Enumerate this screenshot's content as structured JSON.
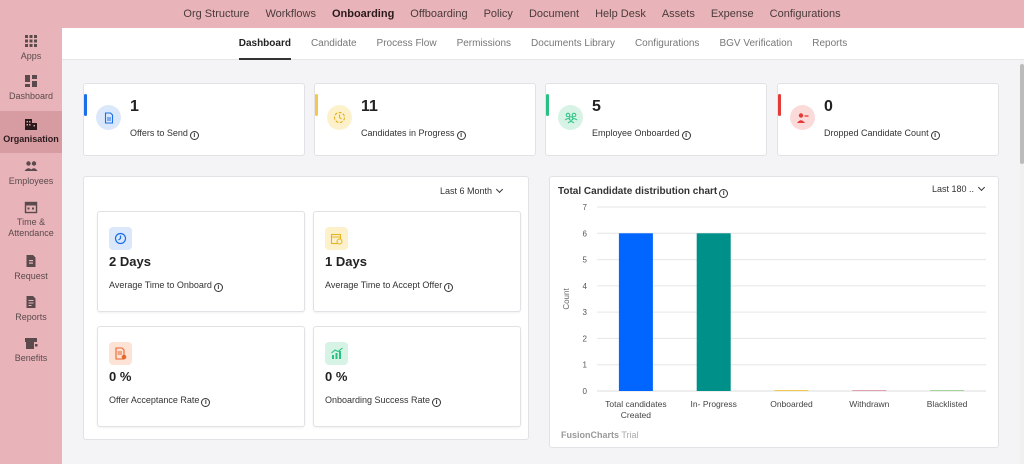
{
  "top_nav": {
    "items": [
      "Org Structure",
      "Workflows",
      "Onboarding",
      "Offboarding",
      "Policy",
      "Document",
      "Help Desk",
      "Assets",
      "Expense",
      "Configurations"
    ],
    "active": "Onboarding"
  },
  "sidebar": {
    "items": [
      {
        "label": "Apps",
        "icon": "grid-icon"
      },
      {
        "label": "Dashboard",
        "icon": "dashboard-icon"
      },
      {
        "label": "Organisation",
        "icon": "building-icon"
      },
      {
        "label": "Employees",
        "icon": "people-icon"
      },
      {
        "label": "Time & Attendance",
        "icon": "calendar-icon"
      },
      {
        "label": "Request",
        "icon": "request-icon"
      },
      {
        "label": "Reports",
        "icon": "report-icon"
      },
      {
        "label": "Benefits",
        "icon": "benefits-icon"
      }
    ],
    "active": "Organisation"
  },
  "sub_nav": {
    "tabs": [
      "Dashboard",
      "Candidate",
      "Process Flow",
      "Permissions",
      "Documents Library",
      "Configurations",
      "BGV Verification",
      "Reports"
    ],
    "active": "Dashboard"
  },
  "stats": [
    {
      "value": "1",
      "label": "Offers to Send",
      "icon": "document-icon",
      "accent": "#1a6fe8",
      "circle": "#dbe8fb"
    },
    {
      "value": "11",
      "label": "Candidates in Progress",
      "icon": "progress-icon",
      "accent": "#f2c94c",
      "circle": "#fdf1cc"
    },
    {
      "value": "5",
      "label": "Employee Onboarded",
      "icon": "group-icon",
      "accent": "#27c281",
      "circle": "#d6f3e6"
    },
    {
      "value": "0",
      "label": "Dropped Candidate Count",
      "icon": "user-remove-icon",
      "accent": "#e53935",
      "circle": "#fbdada"
    }
  ],
  "metrics_panel": {
    "range": "Last 6 Month",
    "metrics": [
      {
        "value": "2 Days",
        "label": "Average Time to Onboard",
        "icon": "timer-icon",
        "bg": "#dbe8fb",
        "color": "#1a6fe8"
      },
      {
        "value": "1 Days",
        "label": "Average Time to Accept Offer",
        "icon": "calendar-clock-icon",
        "bg": "#fdf1cc",
        "color": "#e6b422"
      },
      {
        "value": "0 %",
        "label": "Offer Acceptance Rate",
        "icon": "offer-icon",
        "bg": "#fde3d6",
        "color": "#e8662a"
      },
      {
        "value": "0 %",
        "label": "Onboarding Success Rate",
        "icon": "growth-chart-icon",
        "bg": "#d6f3e6",
        "color": "#27c281"
      }
    ]
  },
  "chart_panel": {
    "title": "Total Candidate distribution chart",
    "range": "Last 180 ..",
    "watermark_brand": "FusionCharts",
    "watermark_suffix": "Trial"
  },
  "chart_data": {
    "type": "bar",
    "categories": [
      [
        "Total candidates",
        "Created"
      ],
      [
        "In- Progress"
      ],
      [
        "Onboarded"
      ],
      [
        "Withdrawn"
      ],
      [
        "Blacklisted"
      ]
    ],
    "values": [
      6,
      6,
      0,
      0,
      0
    ],
    "colors": [
      "#0066ff",
      "#00908a",
      "#f2c94c",
      "#e0a0b0",
      "#a6d39a"
    ],
    "ylabel": "Count",
    "xlabel": "",
    "ylim": [
      0,
      7
    ],
    "yticks": [
      0,
      1,
      2,
      3,
      4,
      5,
      6,
      7
    ],
    "grid": true
  }
}
